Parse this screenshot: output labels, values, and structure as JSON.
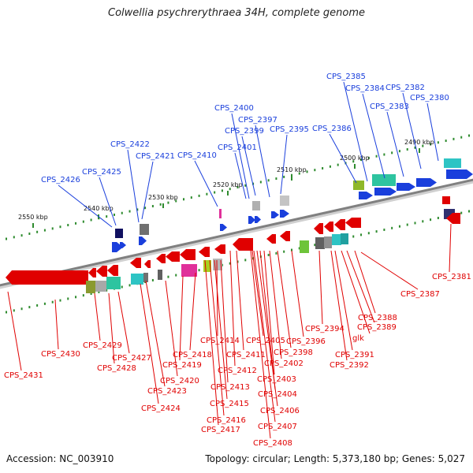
{
  "title": "Colwellia psychrerythraea 34H, complete genome",
  "footer": {
    "accession": "Accession: NC_003910",
    "stats": "Topology: circular; Length: 5,373,180 bp; Genes: 5,027"
  },
  "colors": {
    "forward": "#1a3fdc",
    "reverse": "#e00000",
    "backbone": "#808080",
    "tick": "#2e8b2e"
  },
  "scale_labels": [
    "2490 kbp",
    "2500 kbp",
    "2510 kbp",
    "2520 kbp",
    "2530 kbp",
    "2540 kbp",
    "2550 kbp"
  ],
  "forward_genes": [
    "CPS_2380",
    "CPS_2382",
    "CPS_2383",
    "CPS_2384",
    "CPS_2385",
    "CPS_2386",
    "CPS_2395",
    "CPS_2397",
    "CPS_2399",
    "CPS_2400",
    "CPS_2401",
    "CPS_2410",
    "CPS_2421",
    "CPS_2422",
    "CPS_2425",
    "CPS_2426"
  ],
  "reverse_genes": [
    "CPS_2381",
    "CPS_2387",
    "CPS_2388",
    "CPS_2389",
    "glk",
    "CPS_2391",
    "CPS_2392",
    "CPS_2394",
    "CPS_2396",
    "CPS_2398",
    "CPS_2402",
    "CPS_2403",
    "CPS_2404",
    "CPS_2405",
    "CPS_2406",
    "CPS_2407",
    "CPS_2408",
    "CPS_2411",
    "CPS_2412",
    "CPS_2413",
    "CPS_2414",
    "CPS_2415",
    "CPS_2416",
    "CPS_2417",
    "CPS_2418",
    "CPS_2419",
    "CPS_2420",
    "CPS_2423",
    "CPS_2424",
    "CPS_2427",
    "CPS_2428",
    "CPS_2429",
    "CPS_2430",
    "CPS_2431"
  ]
}
